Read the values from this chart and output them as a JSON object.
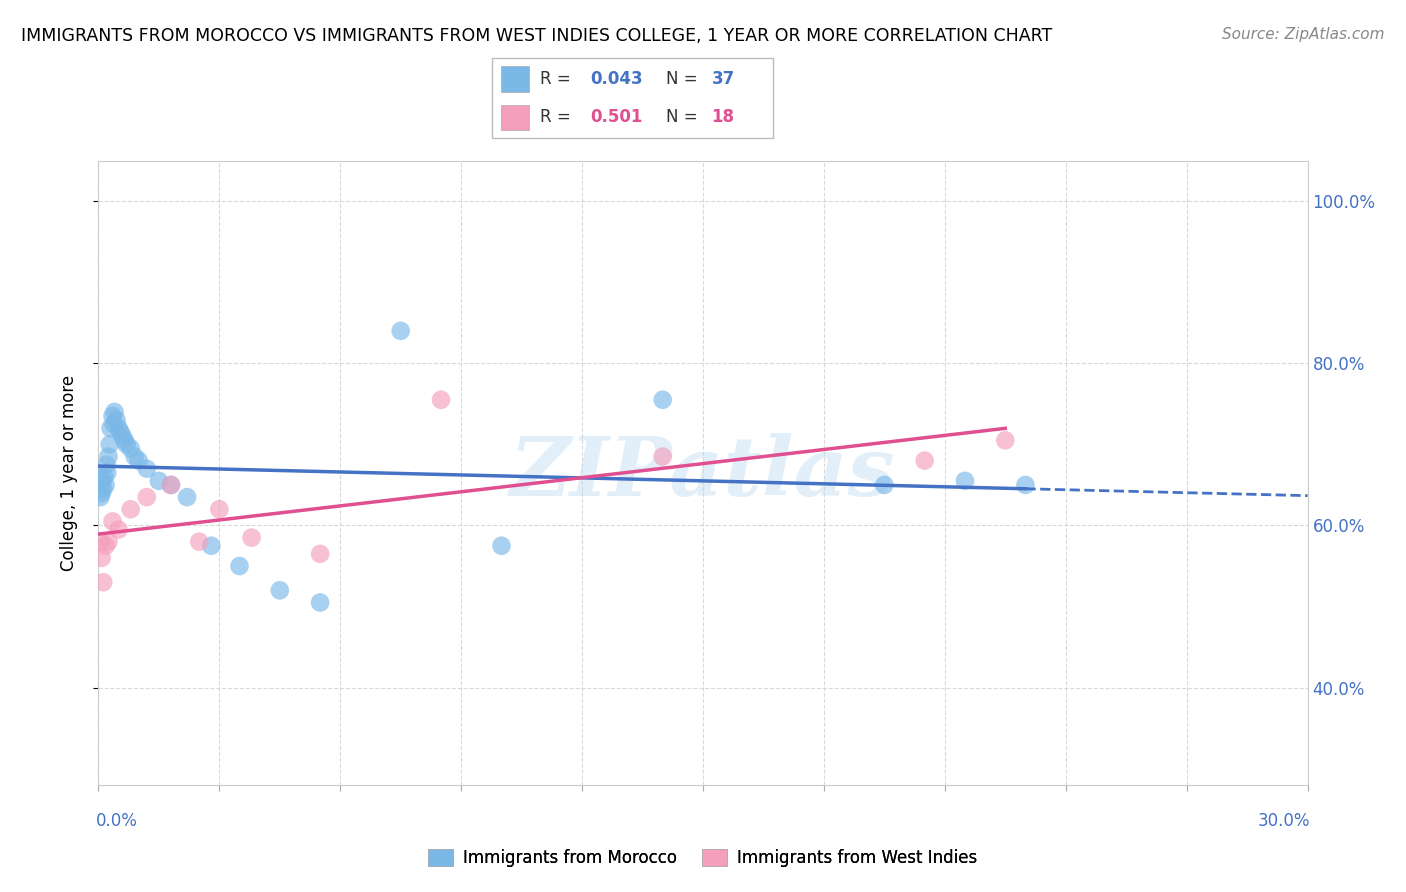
{
  "title": "IMMIGRANTS FROM MOROCCO VS IMMIGRANTS FROM WEST INDIES COLLEGE, 1 YEAR OR MORE CORRELATION CHART",
  "source": "Source: ZipAtlas.com",
  "ylabel": "College, 1 year or more",
  "xlim": [
    0.0,
    30.0
  ],
  "ylim": [
    28.0,
    105.0
  ],
  "yticks": [
    40.0,
    60.0,
    80.0,
    100.0
  ],
  "ytick_labels": [
    "40.0%",
    "60.0%",
    "80.0%",
    "100.0%"
  ],
  "legend_r_morocco": "R = 0.043",
  "legend_n_morocco": "N = 37",
  "legend_r_westindies": "R = 0.501",
  "legend_n_westindies": "N = 18",
  "morocco_color": "#7ab8e8",
  "westindies_color": "#f4a0bc",
  "morocco_line_color": "#4472c4",
  "westindies_line_color": "#e05090",
  "watermark": "ZIPatlas",
  "background_color": "#ffffff",
  "grid_color": "#d0d0d0",
  "morocco_x": [
    0.05,
    0.08,
    0.1,
    0.12,
    0.15,
    0.18,
    0.2,
    0.22,
    0.25,
    0.28,
    0.3,
    0.35,
    0.38,
    0.4,
    0.45,
    0.5,
    0.55,
    0.6,
    0.65,
    0.7,
    0.8,
    0.9,
    1.0,
    1.2,
    1.5,
    1.8,
    2.2,
    2.8,
    3.5,
    4.5,
    5.5,
    7.5,
    10.0,
    14.0,
    19.5,
    21.5,
    23.0
  ],
  "morocco_y": [
    63.5,
    64.0,
    65.5,
    64.5,
    66.0,
    65.0,
    67.5,
    66.5,
    68.5,
    70.0,
    72.0,
    73.5,
    72.5,
    74.0,
    73.0,
    72.0,
    71.5,
    71.0,
    70.5,
    70.0,
    69.5,
    68.5,
    68.0,
    67.0,
    65.5,
    65.0,
    63.5,
    57.5,
    55.0,
    52.0,
    50.5,
    84.0,
    57.5,
    75.5,
    65.0,
    65.5,
    65.0
  ],
  "westindies_x": [
    0.05,
    0.08,
    0.12,
    0.18,
    0.25,
    0.35,
    0.5,
    0.8,
    1.2,
    1.8,
    2.5,
    3.0,
    3.8,
    5.5,
    8.5,
    14.0,
    20.5,
    22.5
  ],
  "westindies_y": [
    58.0,
    56.0,
    53.0,
    57.5,
    58.0,
    60.5,
    59.5,
    62.0,
    63.5,
    65.0,
    58.0,
    62.0,
    58.5,
    56.5,
    75.5,
    68.5,
    68.0,
    70.5
  ]
}
